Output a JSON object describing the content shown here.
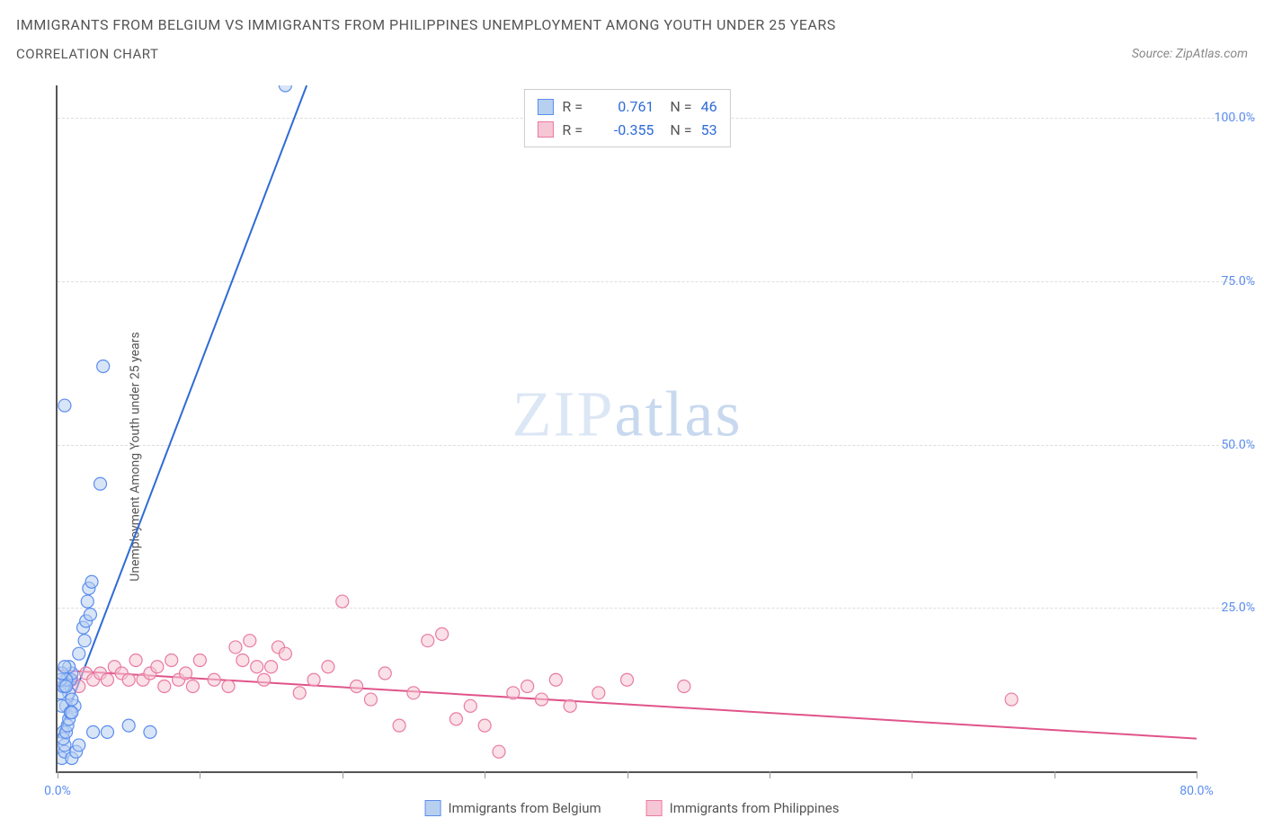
{
  "title": "IMMIGRANTS FROM BELGIUM VS IMMIGRANTS FROM PHILIPPINES UNEMPLOYMENT AMONG YOUTH UNDER 25 YEARS",
  "subtitle": "CORRELATION CHART",
  "source": "Source: ZipAtlas.com",
  "y_axis_label": "Unemployment Among Youth under 25 years",
  "watermark": {
    "bold": "ZIP",
    "light": "atlas"
  },
  "colors": {
    "series_a_fill": "#b8d0f0",
    "series_a_stroke": "#5b8def",
    "series_b_fill": "#f6c6d4",
    "series_b_stroke": "#e87ba3",
    "trend_a": "#2e6bd6",
    "trend_b": "#e0548b",
    "axis": "#555555",
    "grid": "#dddddd",
    "tick_text": "#5b8def",
    "title_text": "#555555"
  },
  "chart": {
    "type": "scatter",
    "x_min": 0,
    "x_max": 80,
    "y_min": 0,
    "y_max": 105,
    "y_ticks": [
      {
        "v": 25,
        "label": "25.0%"
      },
      {
        "v": 50,
        "label": "50.0%"
      },
      {
        "v": 75,
        "label": "75.0%"
      },
      {
        "v": 100,
        "label": "100.0%"
      }
    ],
    "x_ticks": [
      {
        "v": 0,
        "label": "0.0%"
      },
      {
        "v": 10,
        "label": ""
      },
      {
        "v": 20,
        "label": ""
      },
      {
        "v": 30,
        "label": ""
      },
      {
        "v": 40,
        "label": ""
      },
      {
        "v": 50,
        "label": ""
      },
      {
        "v": 60,
        "label": ""
      },
      {
        "v": 70,
        "label": ""
      },
      {
        "v": 80,
        "label": "80.0%"
      }
    ],
    "marker_radius": 7,
    "marker_opacity": 0.55,
    "line_width": 2
  },
  "legend_top": {
    "rows": [
      {
        "color_fill": "#b8d0f0",
        "color_stroke": "#5b8def",
        "r_label": "R =",
        "r_val": "0.761",
        "r_color": "#2e6bd6",
        "n_label": "N =",
        "n_val": "46"
      },
      {
        "color_fill": "#f6c6d4",
        "color_stroke": "#e87ba3",
        "r_label": "R =",
        "r_val": "-0.355",
        "r_color": "#2e6bd6",
        "n_label": "N =",
        "n_val": "53"
      }
    ]
  },
  "legend_bottom": {
    "items": [
      {
        "color_fill": "#b8d0f0",
        "color_stroke": "#5b8def",
        "label": "Immigrants from Belgium"
      },
      {
        "color_fill": "#f6c6d4",
        "color_stroke": "#e87ba3",
        "label": "Immigrants from Philippines"
      }
    ]
  },
  "series_a": {
    "name": "Immigrants from Belgium",
    "trend": {
      "x1": 0,
      "y1": 5,
      "x2": 17.5,
      "y2": 105
    },
    "points": [
      [
        0.3,
        2
      ],
      [
        0.5,
        3
      ],
      [
        0.4,
        6
      ],
      [
        0.6,
        10
      ],
      [
        0.8,
        12
      ],
      [
        0.5,
        13
      ],
      [
        0.7,
        14
      ],
      [
        0.9,
        14
      ],
      [
        1.0,
        15
      ],
      [
        1.2,
        10
      ],
      [
        1.0,
        11
      ],
      [
        0.3,
        10
      ],
      [
        0.2,
        12
      ],
      [
        0.4,
        13
      ],
      [
        0.6,
        14
      ],
      [
        0.8,
        16
      ],
      [
        1.5,
        18
      ],
      [
        1.8,
        22
      ],
      [
        2.0,
        23
      ],
      [
        2.1,
        26
      ],
      [
        2.2,
        28
      ],
      [
        2.4,
        29
      ],
      [
        2.3,
        24
      ],
      [
        1.9,
        20
      ],
      [
        0.5,
        4
      ],
      [
        0.4,
        5
      ],
      [
        0.6,
        6
      ],
      [
        0.7,
        7
      ],
      [
        0.8,
        8
      ],
      [
        0.9,
        9
      ],
      [
        1.0,
        9
      ],
      [
        0.5,
        56
      ],
      [
        3.0,
        44
      ],
      [
        3.2,
        62
      ],
      [
        16.0,
        105
      ],
      [
        2.5,
        6
      ],
      [
        3.5,
        6
      ],
      [
        5.0,
        7
      ],
      [
        6.5,
        6
      ],
      [
        1.0,
        2
      ],
      [
        1.3,
        3
      ],
      [
        1.5,
        4
      ],
      [
        0.2,
        14
      ],
      [
        0.3,
        15
      ],
      [
        0.5,
        16
      ],
      [
        0.6,
        13
      ]
    ]
  },
  "series_b": {
    "name": "Immigrants from Philippines",
    "trend": {
      "x1": 0,
      "y1": 15.5,
      "x2": 80,
      "y2": 5
    },
    "points": [
      [
        1.0,
        14
      ],
      [
        1.5,
        13
      ],
      [
        2.0,
        15
      ],
      [
        2.5,
        14
      ],
      [
        3.0,
        15
      ],
      [
        3.5,
        14
      ],
      [
        4.0,
        16
      ],
      [
        4.5,
        15
      ],
      [
        5.0,
        14
      ],
      [
        5.5,
        17
      ],
      [
        6.0,
        14
      ],
      [
        6.5,
        15
      ],
      [
        7.0,
        16
      ],
      [
        7.5,
        13
      ],
      [
        8.0,
        17
      ],
      [
        8.5,
        14
      ],
      [
        9.0,
        15
      ],
      [
        9.5,
        13
      ],
      [
        10,
        17
      ],
      [
        11,
        14
      ],
      [
        12,
        13
      ],
      [
        12.5,
        19
      ],
      [
        13,
        17
      ],
      [
        13.5,
        20
      ],
      [
        14,
        16
      ],
      [
        14.5,
        14
      ],
      [
        15,
        16
      ],
      [
        15.5,
        19
      ],
      [
        16,
        18
      ],
      [
        17,
        12
      ],
      [
        18,
        14
      ],
      [
        19,
        16
      ],
      [
        20,
        26
      ],
      [
        21,
        13
      ],
      [
        22,
        11
      ],
      [
        23,
        15
      ],
      [
        24,
        7
      ],
      [
        25,
        12
      ],
      [
        26,
        20
      ],
      [
        27,
        21
      ],
      [
        28,
        8
      ],
      [
        29,
        10
      ],
      [
        30,
        7
      ],
      [
        31,
        3
      ],
      [
        32,
        12
      ],
      [
        33,
        13
      ],
      [
        34,
        11
      ],
      [
        35,
        14
      ],
      [
        36,
        10
      ],
      [
        38,
        12
      ],
      [
        40,
        14
      ],
      [
        44,
        13
      ],
      [
        67,
        11
      ]
    ]
  }
}
